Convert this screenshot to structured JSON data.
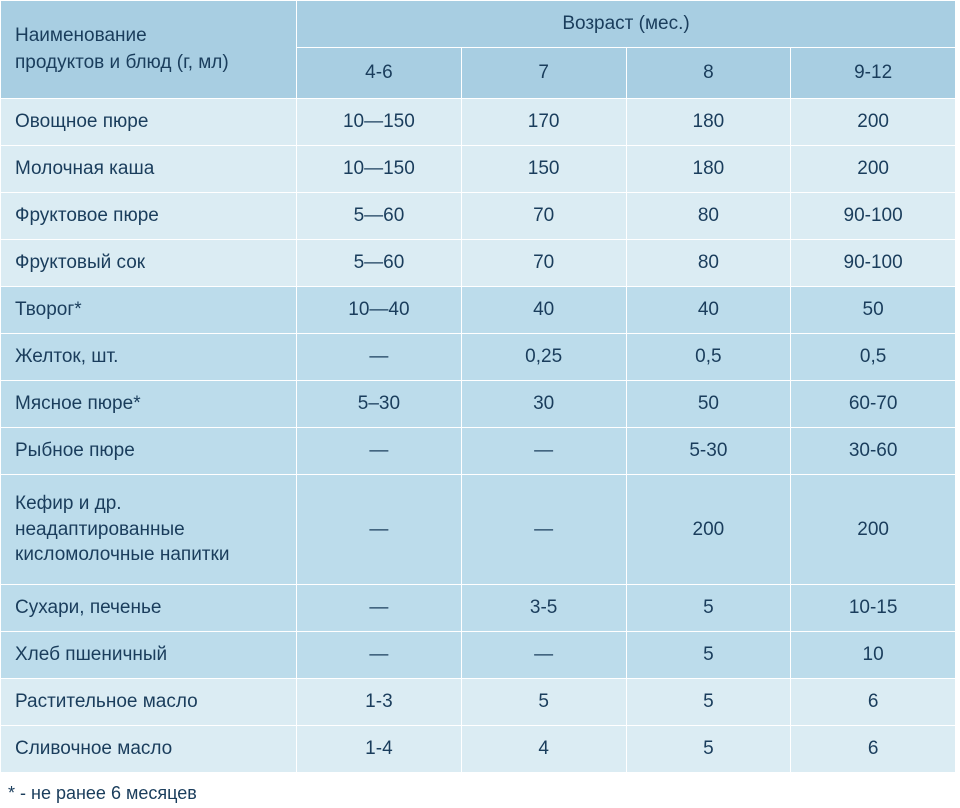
{
  "colors": {
    "header_bg": "#a8cee2",
    "row_pale": "#dbecf3",
    "row_deep": "#bcdceb",
    "text": "#1a3d5c",
    "border": "#ffffff"
  },
  "typography": {
    "font_family": "Arial Narrow, Arial, sans-serif",
    "header_fontsize_pt": 14,
    "body_fontsize_pt": 14,
    "footnote_fontsize_pt": 13
  },
  "header": {
    "rowlabel_line1": "Наименование",
    "rowlabel_line2": "продуктов и блюд (г, мл)",
    "age_label": "Возраст (мес.)",
    "ages": [
      "4-6",
      "7",
      "8",
      "9-12"
    ]
  },
  "rows": [
    {
      "shade": "pale",
      "label": "Овощное пюре",
      "v": [
        "10—150",
        "170",
        "180",
        "200"
      ]
    },
    {
      "shade": "pale",
      "label": "Молочная каша",
      "v": [
        "10—150",
        "150",
        "180",
        "200"
      ]
    },
    {
      "shade": "pale",
      "label": "Фруктовое пюре",
      "v": [
        "5—60",
        "70",
        "80",
        "90-100"
      ]
    },
    {
      "shade": "pale",
      "label": "Фруктовый сок",
      "v": [
        "5—60",
        "70",
        "80",
        "90-100"
      ]
    },
    {
      "shade": "deep",
      "label": "Творог*",
      "v": [
        "10—40",
        "40",
        "40",
        "50"
      ]
    },
    {
      "shade": "deep",
      "label": "Желток, шт.",
      "v": [
        "—",
        "0,25",
        "0,5",
        "0,5"
      ]
    },
    {
      "shade": "deep",
      "label": "Мясное пюре*",
      "v": [
        "5–30",
        "30",
        "50",
        "60-70"
      ]
    },
    {
      "shade": "deep",
      "label": "Рыбное пюре",
      "v": [
        "—",
        "—",
        "5-30",
        "30-60"
      ]
    },
    {
      "shade": "deep",
      "tall": true,
      "label_line1": "Кефир и др. неадаптированные",
      "label_line2": "кисломолочные напитки",
      "v": [
        "—",
        "—",
        "200",
        "200"
      ]
    },
    {
      "shade": "deep",
      "label": "Сухари, печенье",
      "v": [
        "—",
        "3-5",
        "5",
        "10-15"
      ]
    },
    {
      "shade": "deep",
      "label": "Хлеб пшеничный",
      "v": [
        "—",
        "—",
        "5",
        "10"
      ]
    },
    {
      "shade": "pale",
      "label": "Растительное масло",
      "v": [
        "1-3",
        "5",
        "5",
        "6"
      ]
    },
    {
      "shade": "pale",
      "label": "Сливочное масло",
      "v": [
        "1-4",
        "4",
        "5",
        "6"
      ]
    }
  ],
  "footnote": "* - не ранее 6 месяцев"
}
